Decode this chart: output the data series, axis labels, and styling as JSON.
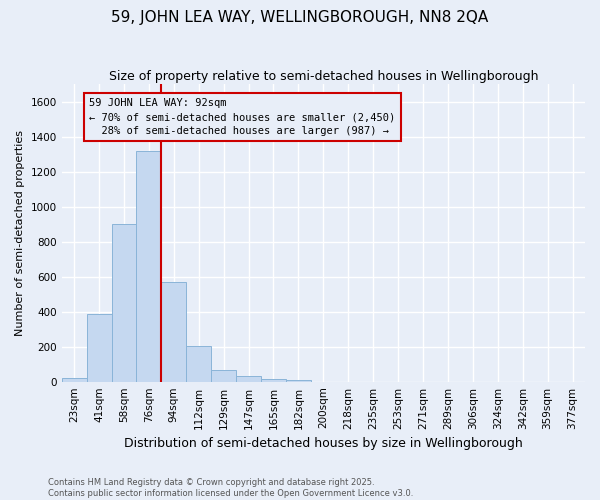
{
  "title": "59, JOHN LEA WAY, WELLINGBOROUGH, NN8 2QA",
  "subtitle": "Size of property relative to semi-detached houses in Wellingborough",
  "xlabel": "Distribution of semi-detached houses by size in Wellingborough",
  "ylabel": "Number of semi-detached properties",
  "categories": [
    "23sqm",
    "41sqm",
    "58sqm",
    "76sqm",
    "94sqm",
    "112sqm",
    "129sqm",
    "147sqm",
    "165sqm",
    "182sqm",
    "200sqm",
    "218sqm",
    "235sqm",
    "253sqm",
    "271sqm",
    "289sqm",
    "306sqm",
    "324sqm",
    "342sqm",
    "359sqm",
    "377sqm"
  ],
  "values": [
    20,
    385,
    900,
    1320,
    570,
    205,
    65,
    30,
    18,
    8,
    0,
    0,
    0,
    0,
    0,
    0,
    0,
    0,
    0,
    0,
    0
  ],
  "bar_color": "#c5d8f0",
  "bar_edge_color": "#8ab4d8",
  "property_line_index": 4,
  "property_line_color": "#cc0000",
  "annotation_text": "59 JOHN LEA WAY: 92sqm\n← 70% of semi-detached houses are smaller (2,450)\n  28% of semi-detached houses are larger (987) →",
  "annotation_box_color": "#cc0000",
  "annotation_bg_color": "#e8eef8",
  "ylim": [
    0,
    1700
  ],
  "yticks": [
    0,
    200,
    400,
    600,
    800,
    1000,
    1200,
    1400,
    1600
  ],
  "background_color": "#e8eef8",
  "grid_color": "#ffffff",
  "title_fontsize": 11,
  "subtitle_fontsize": 9,
  "ylabel_fontsize": 8,
  "xlabel_fontsize": 9,
  "tick_fontsize": 7.5,
  "annotation_fontsize": 7.5,
  "footer_fontsize": 6,
  "footer": "Contains HM Land Registry data © Crown copyright and database right 2025.\nContains public sector information licensed under the Open Government Licence v3.0."
}
